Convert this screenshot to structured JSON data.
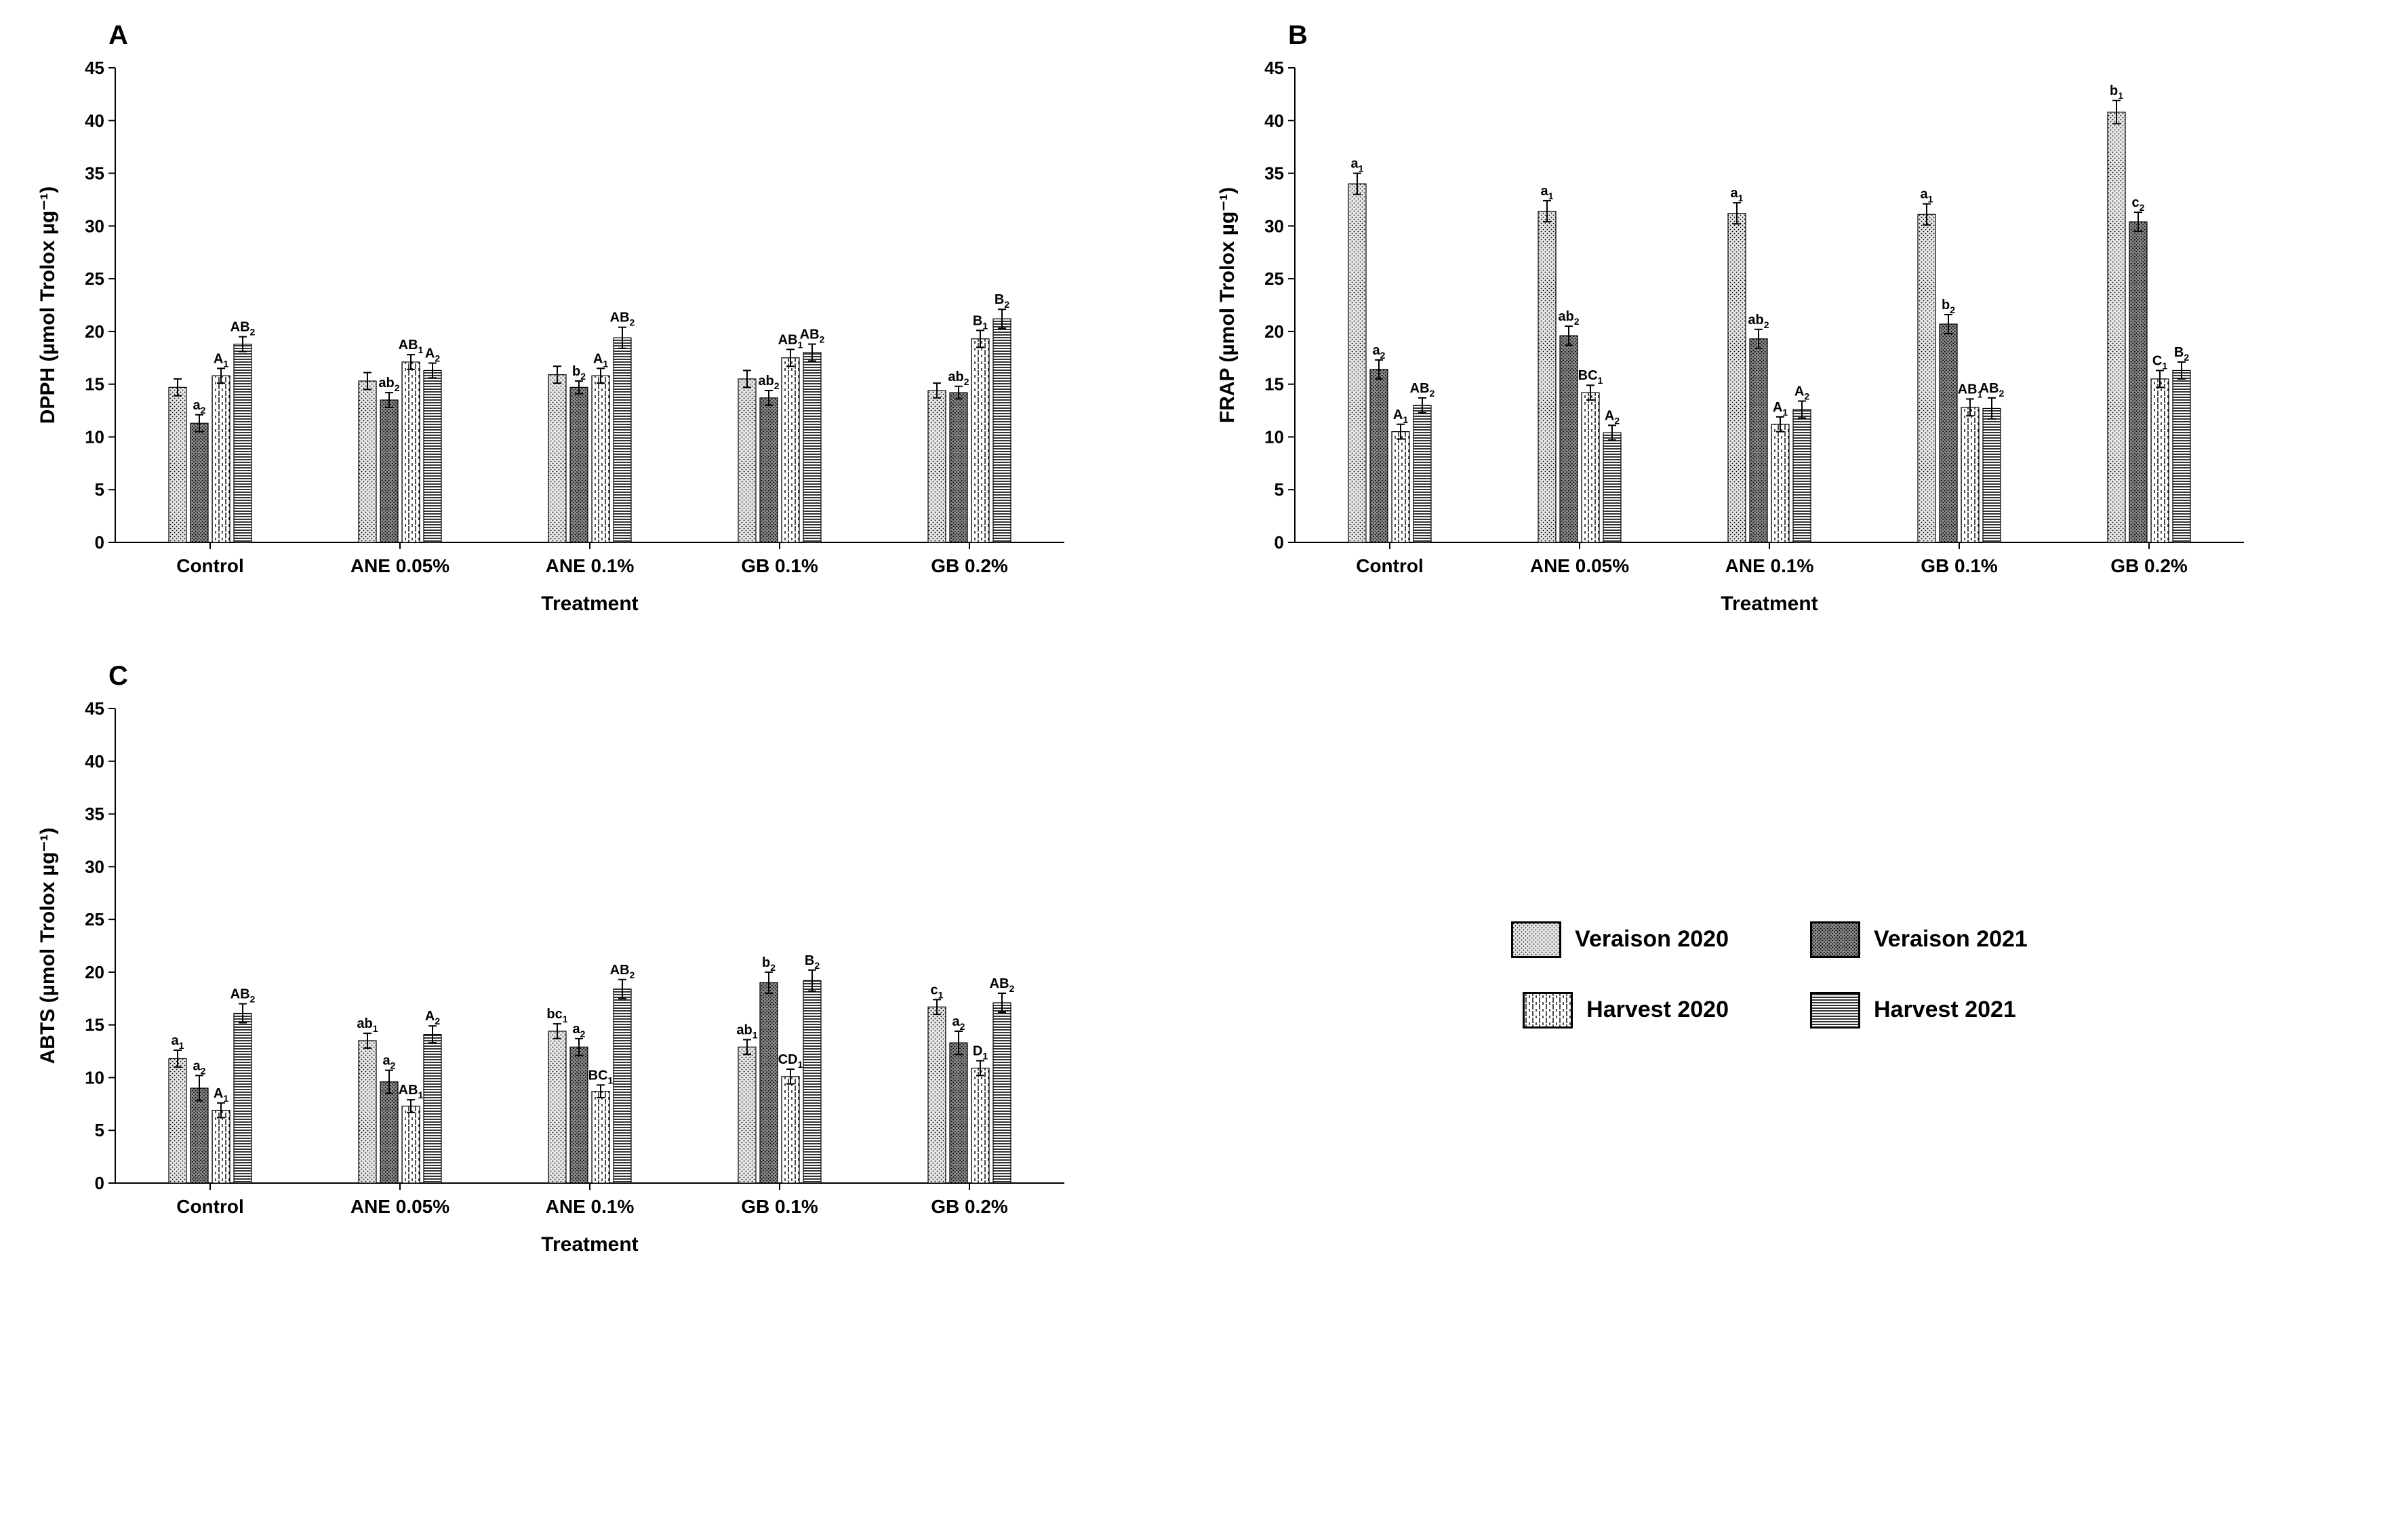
{
  "figure": {
    "background_color": "#ffffff",
    "text_color": "#000000",
    "font_family": "Arial",
    "panels": [
      "A",
      "B",
      "C"
    ],
    "legend": {
      "items": [
        {
          "key": "veraison2020",
          "label": "Veraison 2020"
        },
        {
          "key": "veraison2021",
          "label": "Veraison 2021"
        },
        {
          "key": "harvest2020",
          "label": "Harvest 2020"
        },
        {
          "key": "harvest2021",
          "label": "Harvest 2021"
        }
      ]
    },
    "series_patterns": {
      "veraison2020": "light-dots",
      "veraison2021": "dark-dots",
      "harvest2020": "v-dash",
      "harvest2021": "h-stripe"
    },
    "axis": {
      "ylim": [
        0,
        45
      ],
      "ytick_step": 5,
      "gridlines": false,
      "axis_color": "#000000",
      "axis_line_width": 2
    },
    "categories": [
      "Control",
      "ANE 0.05%",
      "ANE 0.1%",
      "GB 0.1%",
      "GB 0.2%"
    ],
    "xlabel": "Treatment",
    "bar": {
      "width": 26,
      "gap_within_group": 6,
      "error_cap_width": 12,
      "error_line_width": 2
    },
    "charts": {
      "A": {
        "ylabel": "DPPH (µmol Trolox µg⁻¹)",
        "data": {
          "Control": {
            "veraison2020": {
              "v": 14.7,
              "e": 0.8,
              "sig": ""
            },
            "veraison2021": {
              "v": 11.3,
              "e": 0.8,
              "sig": "a",
              "sub": "2"
            },
            "harvest2020": {
              "v": 15.8,
              "e": 0.7,
              "sig": "A",
              "sub": "1"
            },
            "harvest2021": {
              "v": 18.8,
              "e": 0.7,
              "sig": "AB",
              "sub": "2"
            }
          },
          "ANE 0.05%": {
            "veraison2020": {
              "v": 15.3,
              "e": 0.8,
              "sig": ""
            },
            "veraison2021": {
              "v": 13.5,
              "e": 0.7,
              "sig": "ab",
              "sub": "2"
            },
            "harvest2020": {
              "v": 17.1,
              "e": 0.7,
              "sig": "AB",
              "sub": "1"
            },
            "harvest2021": {
              "v": 16.3,
              "e": 0.7,
              "sig": "A",
              "sub": "2"
            }
          },
          "ANE 0.1%": {
            "veraison2020": {
              "v": 15.9,
              "e": 0.8,
              "sig": ""
            },
            "veraison2021": {
              "v": 14.7,
              "e": 0.6,
              "sig": "b",
              "sub": "2"
            },
            "harvest2020": {
              "v": 15.8,
              "e": 0.7,
              "sig": "A",
              "sub": "1"
            },
            "harvest2021": {
              "v": 19.4,
              "e": 1.0,
              "sig": "AB",
              "sub": "2"
            }
          },
          "GB 0.1%": {
            "veraison2020": {
              "v": 15.5,
              "e": 0.8,
              "sig": ""
            },
            "veraison2021": {
              "v": 13.7,
              "e": 0.7,
              "sig": "ab",
              "sub": "2"
            },
            "harvest2020": {
              "v": 17.5,
              "e": 0.8,
              "sig": "AB",
              "sub": "1"
            },
            "harvest2021": {
              "v": 18.0,
              "e": 0.8,
              "sig": "AB",
              "sub": "2"
            }
          },
          "GB 0.2%": {
            "veraison2020": {
              "v": 14.4,
              "e": 0.7,
              "sig": ""
            },
            "veraison2021": {
              "v": 14.2,
              "e": 0.6,
              "sig": "ab",
              "sub": "2"
            },
            "harvest2020": {
              "v": 19.3,
              "e": 0.8,
              "sig": "B",
              "sub": "1"
            },
            "harvest2021": {
              "v": 21.2,
              "e": 0.9,
              "sig": "B",
              "sub": "2"
            }
          }
        }
      },
      "B": {
        "ylabel": "FRAP (µmol Trolox µg⁻¹)",
        "data": {
          "Control": {
            "veraison2020": {
              "v": 34.0,
              "e": 1.0,
              "sig": "a",
              "sub": "1"
            },
            "veraison2021": {
              "v": 16.4,
              "e": 0.9,
              "sig": "a",
              "sub": "2"
            },
            "harvest2020": {
              "v": 10.5,
              "e": 0.7,
              "sig": "A",
              "sub": "1"
            },
            "harvest2021": {
              "v": 13.0,
              "e": 0.7,
              "sig": "AB",
              "sub": "2"
            }
          },
          "ANE 0.05%": {
            "veraison2020": {
              "v": 31.4,
              "e": 1.0,
              "sig": "a",
              "sub": "1"
            },
            "veraison2021": {
              "v": 19.6,
              "e": 0.9,
              "sig": "ab",
              "sub": "2"
            },
            "harvest2020": {
              "v": 14.2,
              "e": 0.7,
              "sig": "BC",
              "sub": "1"
            },
            "harvest2021": {
              "v": 10.4,
              "e": 0.7,
              "sig": "A",
              "sub": "2"
            }
          },
          "ANE 0.1%": {
            "veraison2020": {
              "v": 31.2,
              "e": 1.0,
              "sig": "a",
              "sub": "1"
            },
            "veraison2021": {
              "v": 19.3,
              "e": 0.9,
              "sig": "ab",
              "sub": "2"
            },
            "harvest2020": {
              "v": 11.2,
              "e": 0.7,
              "sig": "A",
              "sub": "1"
            },
            "harvest2021": {
              "v": 12.6,
              "e": 0.8,
              "sig": "A",
              "sub": "2"
            }
          },
          "GB 0.1%": {
            "veraison2020": {
              "v": 31.1,
              "e": 1.0,
              "sig": "a",
              "sub": "1"
            },
            "veraison2021": {
              "v": 20.7,
              "e": 0.9,
              "sig": "b",
              "sub": "2"
            },
            "harvest2020": {
              "v": 12.8,
              "e": 0.8,
              "sig": "AB",
              "sub": "1"
            },
            "harvest2021": {
              "v": 12.7,
              "e": 1.0,
              "sig": "AB",
              "sub": "2"
            }
          },
          "GB 0.2%": {
            "veraison2020": {
              "v": 40.8,
              "e": 1.1,
              "sig": "b",
              "sub": "1"
            },
            "veraison2021": {
              "v": 30.4,
              "e": 0.9,
              "sig": "c",
              "sub": "2"
            },
            "harvest2020": {
              "v": 15.5,
              "e": 0.8,
              "sig": "C",
              "sub": "1"
            },
            "harvest2021": {
              "v": 16.3,
              "e": 0.8,
              "sig": "B",
              "sub": "2"
            }
          }
        }
      },
      "C": {
        "ylabel": "ABTS (µmol Trolox µg⁻¹)",
        "data": {
          "Control": {
            "veraison2020": {
              "v": 11.8,
              "e": 0.8,
              "sig": "a",
              "sub": "1"
            },
            "veraison2021": {
              "v": 9.0,
              "e": 1.2,
              "sig": "a",
              "sub": "2"
            },
            "harvest2020": {
              "v": 6.9,
              "e": 0.7,
              "sig": "A",
              "sub": "1"
            },
            "harvest2021": {
              "v": 16.1,
              "e": 0.9,
              "sig": "AB",
              "sub": "2"
            }
          },
          "ANE 0.05%": {
            "veraison2020": {
              "v": 13.5,
              "e": 0.7,
              "sig": "ab",
              "sub": "1"
            },
            "veraison2021": {
              "v": 9.6,
              "e": 1.1,
              "sig": "a",
              "sub": "2"
            },
            "harvest2020": {
              "v": 7.3,
              "e": 0.6,
              "sig": "AB",
              "sub": "1"
            },
            "harvest2021": {
              "v": 14.1,
              "e": 0.8,
              "sig": "A",
              "sub": "2"
            }
          },
          "ANE 0.1%": {
            "veraison2020": {
              "v": 14.4,
              "e": 0.7,
              "sig": "bc",
              "sub": "1"
            },
            "veraison2021": {
              "v": 12.9,
              "e": 0.8,
              "sig": "a",
              "sub": "2"
            },
            "harvest2020": {
              "v": 8.7,
              "e": 0.6,
              "sig": "BC",
              "sub": "1"
            },
            "harvest2021": {
              "v": 18.4,
              "e": 0.9,
              "sig": "AB",
              "sub": "2"
            }
          },
          "GB 0.1%": {
            "veraison2020": {
              "v": 12.9,
              "e": 0.7,
              "sig": "ab",
              "sub": "1"
            },
            "veraison2021": {
              "v": 19.0,
              "e": 1.0,
              "sig": "b",
              "sub": "2"
            },
            "harvest2020": {
              "v": 10.1,
              "e": 0.7,
              "sig": "CD",
              "sub": "1"
            },
            "harvest2021": {
              "v": 19.2,
              "e": 1.0,
              "sig": "B",
              "sub": "2"
            }
          },
          "GB 0.2%": {
            "veraison2020": {
              "v": 16.7,
              "e": 0.7,
              "sig": "c",
              "sub": "1"
            },
            "veraison2021": {
              "v": 13.3,
              "e": 1.1,
              "sig": "a",
              "sub": "2"
            },
            "harvest2020": {
              "v": 10.9,
              "e": 0.7,
              "sig": "D",
              "sub": "1"
            },
            "harvest2021": {
              "v": 17.1,
              "e": 0.9,
              "sig": "AB",
              "sub": "2"
            }
          }
        }
      }
    }
  }
}
